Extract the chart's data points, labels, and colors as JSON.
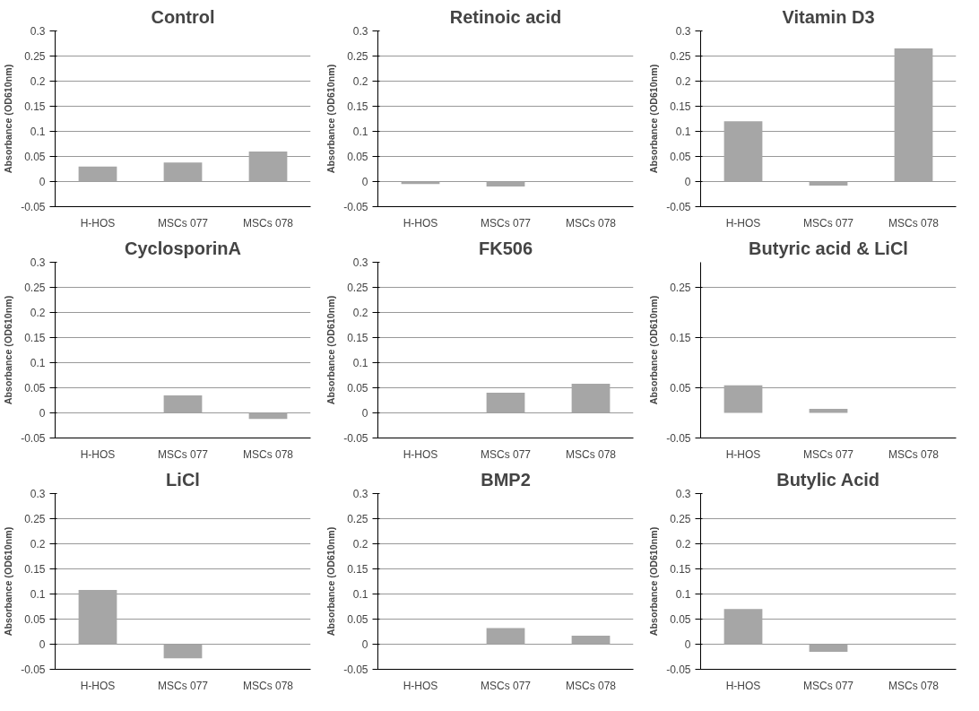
{
  "chart_data": [
    {
      "type": "bar",
      "title": "Control",
      "ylabel": "Absorbance (OD610nm)",
      "categories": [
        "H-HOS",
        "MSCs 077",
        "MSCs 078"
      ],
      "values": [
        0.03,
        0.038,
        0.06
      ],
      "color": "#a6a6a6",
      "ylim": [
        -0.05,
        0.3
      ],
      "yticks": [
        -0.05,
        0,
        0.05,
        0.1,
        0.15,
        0.2,
        0.25,
        0.3
      ],
      "grid": "y"
    },
    {
      "type": "bar",
      "title": "Retinoic acid",
      "ylabel": "Absorbance (OD610nm)",
      "categories": [
        "H-HOS",
        "MSCs 077",
        "MSCs 078"
      ],
      "values": [
        -0.005,
        -0.01,
        0
      ],
      "color": "#a6a6a6",
      "ylim": [
        -0.05,
        0.3
      ],
      "yticks": [
        -0.05,
        0,
        0.05,
        0.1,
        0.15,
        0.2,
        0.25,
        0.3
      ],
      "grid": "y"
    },
    {
      "type": "bar",
      "title": "Vitamin D3",
      "ylabel": "Absorbance (OD610nm)",
      "categories": [
        "H-HOS",
        "MSCs 077",
        "MSCs 078"
      ],
      "values": [
        0.12,
        -0.008,
        0.265
      ],
      "color": "#a6a6a6",
      "ylim": [
        -0.05,
        0.3
      ],
      "yticks": [
        -0.05,
        0,
        0.05,
        0.1,
        0.15,
        0.2,
        0.25,
        0.3
      ],
      "grid": "y"
    },
    {
      "type": "bar",
      "title": "CyclosporinA",
      "ylabel": "Absorbance (OD610nm)",
      "categories": [
        "H-HOS",
        "MSCs 077",
        "MSCs 078"
      ],
      "values": [
        0,
        0.035,
        -0.012
      ],
      "color": "#a6a6a6",
      "ylim": [
        -0.05,
        0.3
      ],
      "yticks": [
        -0.05,
        0,
        0.05,
        0.1,
        0.15,
        0.2,
        0.25,
        0.3
      ],
      "grid": "y"
    },
    {
      "type": "bar",
      "title": "FK506",
      "ylabel": "Absorbance (OD610nm)",
      "categories": [
        "H-HOS",
        "MSCs 077",
        "MSCs 078"
      ],
      "values": [
        0,
        0.04,
        0.058
      ],
      "color": "#a6a6a6",
      "ylim": [
        -0.05,
        0.3
      ],
      "yticks": [
        -0.05,
        0,
        0.05,
        0.1,
        0.15,
        0.2,
        0.25,
        0.3
      ],
      "grid": "y"
    },
    {
      "type": "bar",
      "title": "Butyric acid & LiCl",
      "ylabel": "Absorbance (OD610nm)",
      "categories": [
        "H-HOS",
        "MSCs 077",
        "MSCs 078"
      ],
      "values": [
        0.055,
        0.008,
        0
      ],
      "color": "#a6a6a6",
      "ylim": [
        -0.05,
        0.3
      ],
      "yticks": [
        -0.05,
        0.05,
        0.15,
        0.25
      ],
      "grid": "y"
    },
    {
      "type": "bar",
      "title": "LiCl",
      "ylabel": "Absorbance (OD610nm)",
      "categories": [
        "H-HOS",
        "MSCs 077",
        "MSCs 078"
      ],
      "values": [
        0.108,
        -0.028,
        0
      ],
      "color": "#a6a6a6",
      "ylim": [
        -0.05,
        0.3
      ],
      "yticks": [
        -0.05,
        0,
        0.05,
        0.1,
        0.15,
        0.2,
        0.25,
        0.3
      ],
      "grid": "y"
    },
    {
      "type": "bar",
      "title": "BMP2",
      "ylabel": "Absorbance (OD610nm)",
      "categories": [
        "H-HOS",
        "MSCs 077",
        "MSCs 078"
      ],
      "values": [
        0,
        0.032,
        0.017
      ],
      "color": "#a6a6a6",
      "ylim": [
        -0.05,
        0.3
      ],
      "yticks": [
        -0.05,
        0,
        0.05,
        0.1,
        0.15,
        0.2,
        0.25,
        0.3
      ],
      "grid": "y"
    },
    {
      "type": "bar",
      "title": "Butylic Acid",
      "ylabel": "Absorbance (OD610nm)",
      "categories": [
        "H-HOS",
        "MSCs 077",
        "MSCs 078"
      ],
      "values": [
        0.07,
        -0.015,
        0
      ],
      "color": "#a6a6a6",
      "ylim": [
        -0.05,
        0.3
      ],
      "yticks": [
        -0.05,
        0,
        0.05,
        0.1,
        0.15,
        0.2,
        0.25,
        0.3
      ],
      "grid": "y"
    }
  ]
}
